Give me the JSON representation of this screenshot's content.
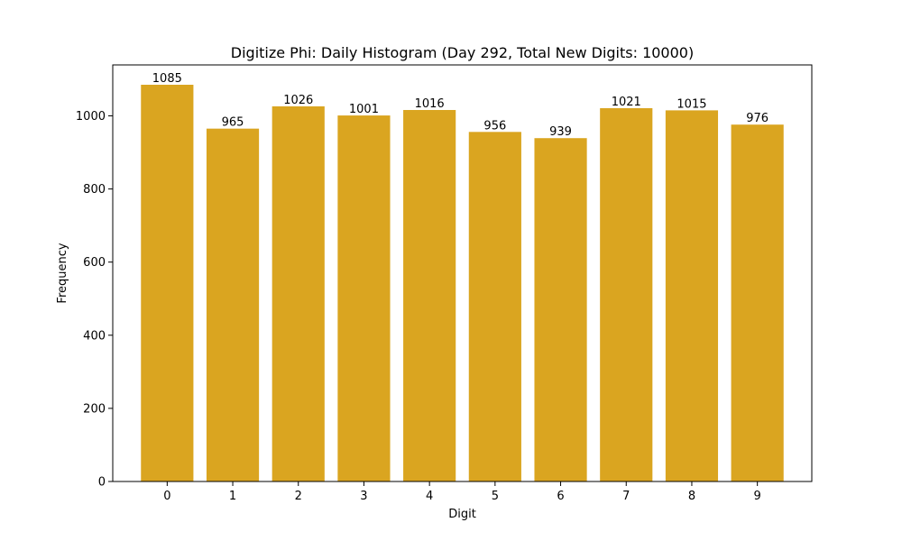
{
  "chart_data": {
    "type": "bar",
    "title": "Digitize Phi: Daily Histogram (Day 292, Total New Digits: 10000)",
    "xlabel": "Digit",
    "ylabel": "Frequency",
    "categories": [
      "0",
      "1",
      "2",
      "3",
      "4",
      "5",
      "6",
      "7",
      "8",
      "9"
    ],
    "values": [
      1085,
      965,
      1026,
      1001,
      1016,
      956,
      939,
      1021,
      1015,
      976
    ],
    "data_labels": [
      "1085",
      "965",
      "1026",
      "1001",
      "1016",
      "956",
      "939",
      "1021",
      "1015",
      "976"
    ],
    "ylim": [
      0,
      1139.25
    ],
    "yticks": [
      0,
      200,
      400,
      600,
      800,
      1000
    ],
    "ytick_labels": [
      "0",
      "200",
      "400",
      "600",
      "800",
      "1000"
    ],
    "grid": false,
    "legend": "none",
    "bar_color": "#DAA520"
  }
}
